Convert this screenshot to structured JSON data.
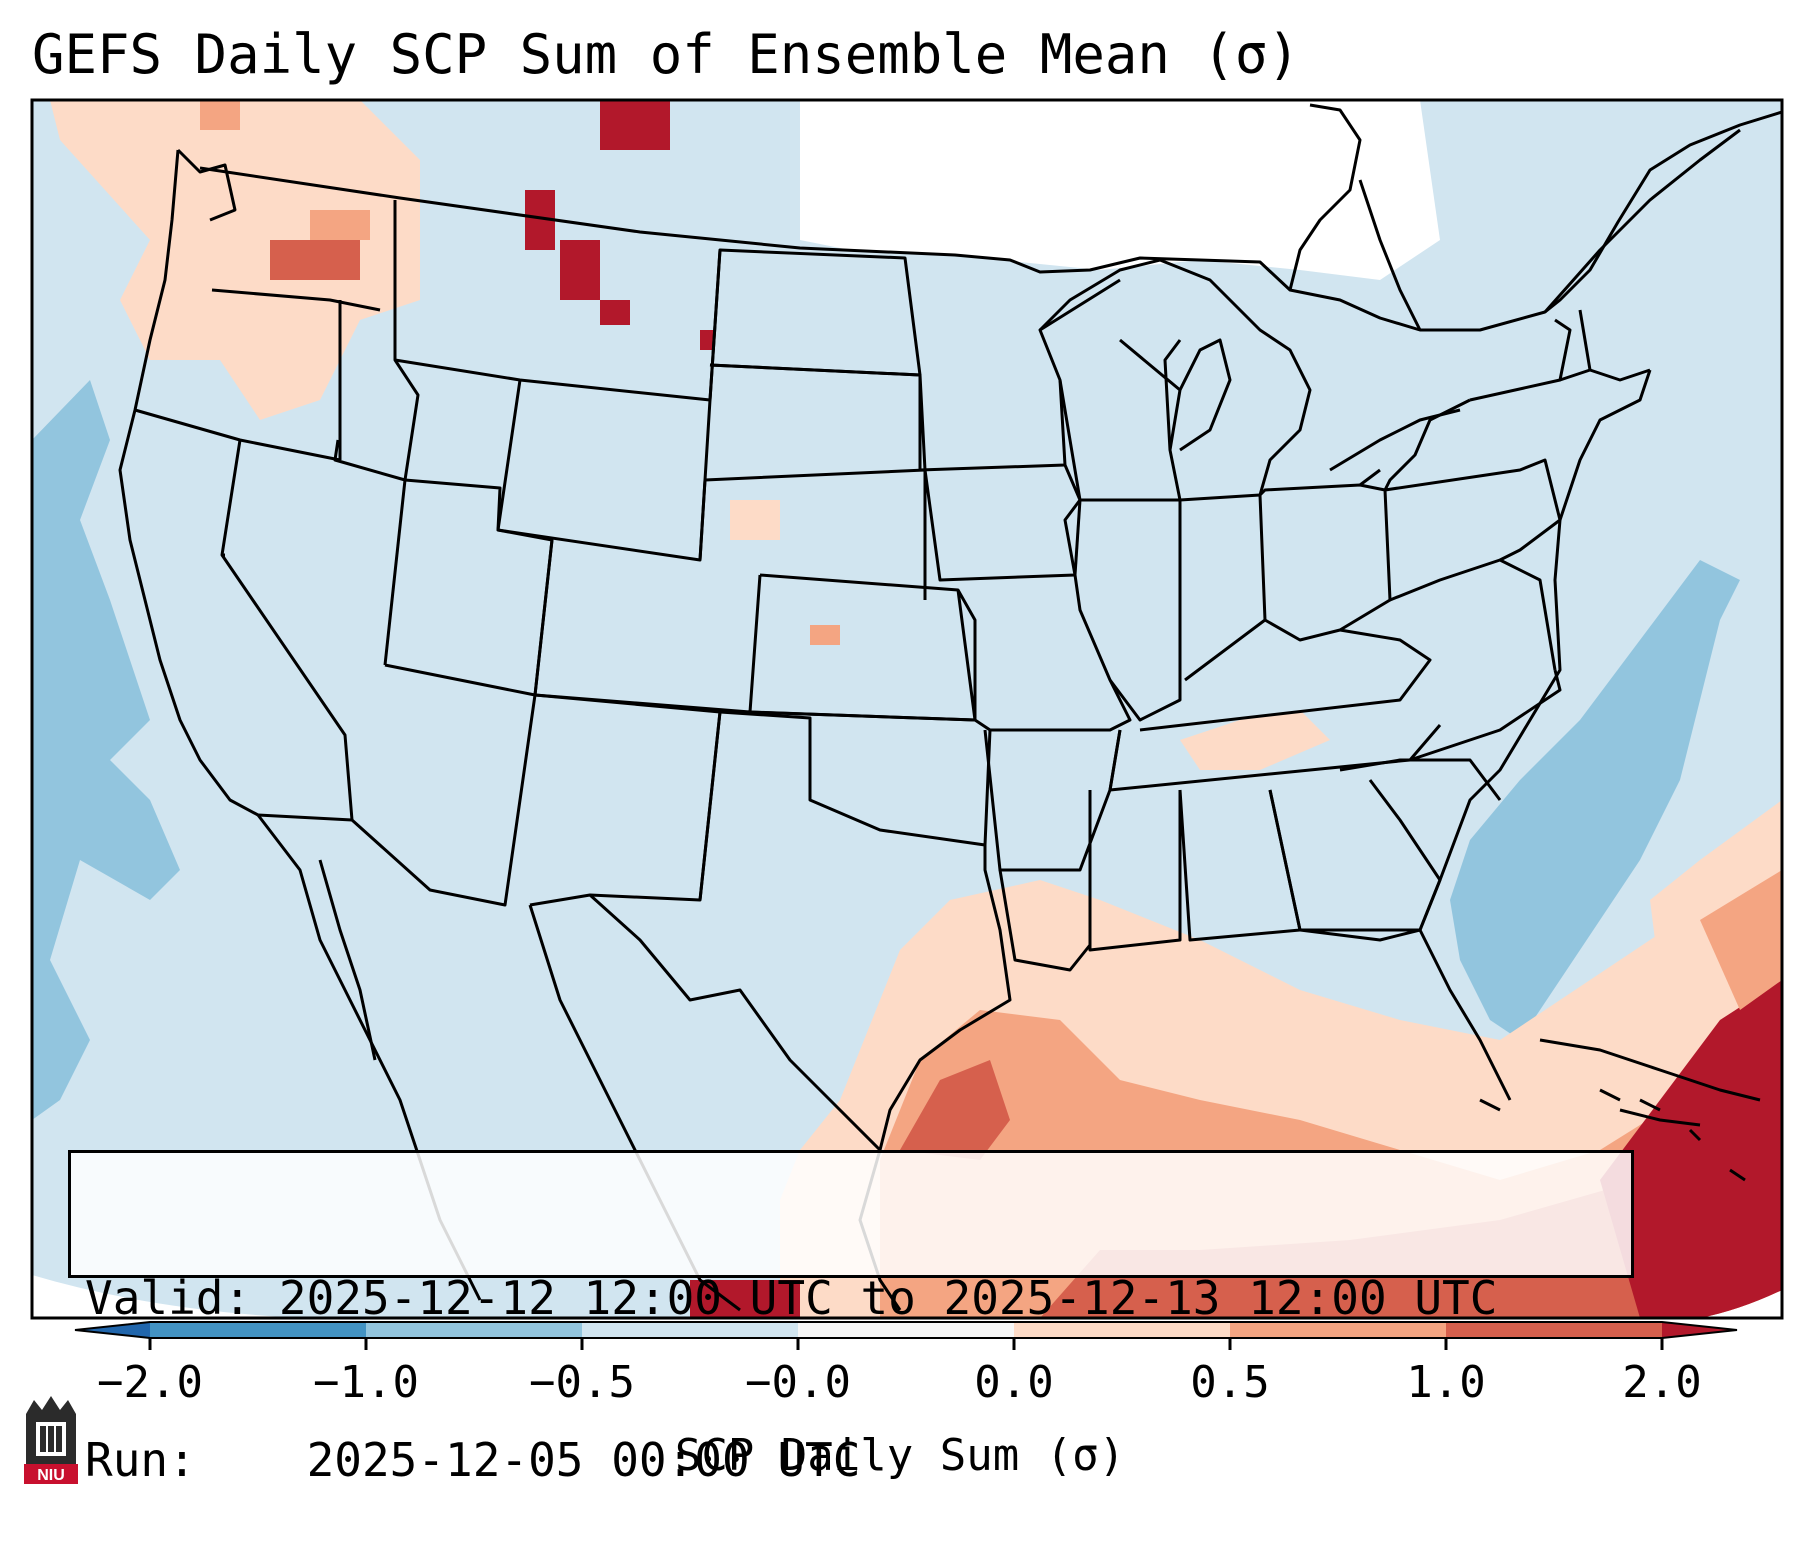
{
  "title": "GEFS Daily SCP Sum of Ensemble Mean (σ)",
  "info": {
    "valid_label": "Valid:",
    "valid_value": "2025-12-12 12:00 UTC to 2025-12-13 12:00 UTC",
    "run_label": "Run:",
    "run_value": "2025-12-05 00:00 UTC"
  },
  "colorbar": {
    "label": "SCP Daily Sum (σ)",
    "ticks": [
      "−2.0",
      "−1.0",
      "−0.5",
      "−0.0",
      "0.0",
      "0.5",
      "1.0",
      "2.0"
    ],
    "colors": {
      "under": "#2166ac",
      "lt_m1": "#4393c3",
      "m1_m05": "#92c5de",
      "m05_0": "#d1e5f0",
      "zero_band": "#f7f7f7",
      "p0_p05": "#fddbc7",
      "p05_p1": "#f4a582",
      "p1_p2": "#d6604d",
      "over": "#b2182b"
    }
  },
  "map_colors": {
    "background": "#d1e5f0",
    "ocean_low": "#92c5de",
    "light_pos": "#fddbc7",
    "mid_pos": "#f4a582",
    "high_pos": "#d6604d",
    "max_pos": "#b2182b",
    "blank": "#ffffff"
  },
  "logo": {
    "text": "NIU",
    "color": "#c8102e"
  },
  "icons": {
    "logo": "niu-logo-icon"
  }
}
